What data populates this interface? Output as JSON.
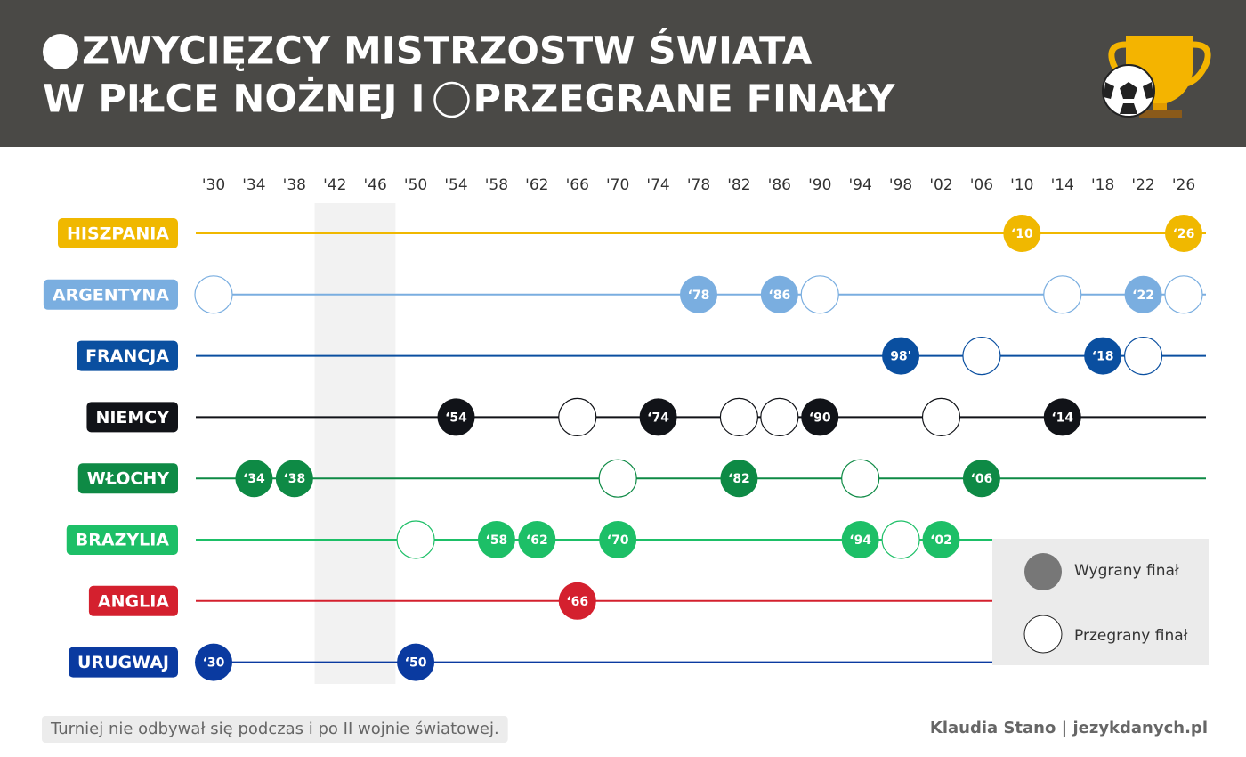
{
  "chart_data": {
    "type": "timeline",
    "title_part1": "ZWYCIĘZCY MISTRZOSTW ŚWIATA",
    "title_part2": "W PIŁCE NOŻNEJ I",
    "title_part3": "PRZEGRANE FINAŁY",
    "xlim": [
      1930,
      2026
    ],
    "xticks": [
      {
        "value": 1930,
        "label": "'30"
      },
      {
        "value": 1934,
        "label": "'34"
      },
      {
        "value": 1938,
        "label": "'38"
      },
      {
        "value": 1942,
        "label": "'42"
      },
      {
        "value": 1946,
        "label": "'46"
      },
      {
        "value": 1950,
        "label": "'50"
      },
      {
        "value": 1954,
        "label": "'54"
      },
      {
        "value": 1958,
        "label": "'58"
      },
      {
        "value": 1962,
        "label": "'62"
      },
      {
        "value": 1966,
        "label": "'66"
      },
      {
        "value": 1970,
        "label": "'70"
      },
      {
        "value": 1974,
        "label": "'74"
      },
      {
        "value": 1978,
        "label": "'78"
      },
      {
        "value": 1982,
        "label": "'82"
      },
      {
        "value": 1986,
        "label": "'86"
      },
      {
        "value": 1990,
        "label": "'90"
      },
      {
        "value": 1994,
        "label": "'94"
      },
      {
        "value": 1998,
        "label": "'98"
      },
      {
        "value": 2002,
        "label": "'02"
      },
      {
        "value": 2006,
        "label": "'06"
      },
      {
        "value": 2010,
        "label": "'10"
      },
      {
        "value": 2014,
        "label": "'14"
      },
      {
        "value": 2018,
        "label": "'18"
      },
      {
        "value": 2022,
        "label": "'22"
      },
      {
        "value": 2026,
        "label": "'26"
      }
    ],
    "no_tournament": [
      1942,
      1946
    ],
    "rows": [
      {
        "name": "HISZPANIA",
        "color": "#f0b800",
        "wins": [
          {
            "year": 2010,
            "label": "‘10"
          },
          {
            "year": 2026,
            "label": "‘26"
          }
        ],
        "losses": []
      },
      {
        "name": "ARGENTYNA",
        "color": "#7aaee0",
        "wins": [
          {
            "year": 1978,
            "label": "‘78"
          },
          {
            "year": 1986,
            "label": "‘86"
          },
          {
            "year": 2022,
            "label": "‘22"
          }
        ],
        "losses": [
          1930,
          1990,
          2014,
          2026
        ]
      },
      {
        "name": "FRANCJA",
        "color": "#0a4fa0",
        "wins": [
          {
            "year": 1998,
            "label": "98'"
          },
          {
            "year": 2018,
            "label": "‘18"
          }
        ],
        "losses": [
          2006,
          2022
        ]
      },
      {
        "name": "NIEMCY",
        "color": "#111318",
        "wins": [
          {
            "year": 1954,
            "label": "‘54"
          },
          {
            "year": 1974,
            "label": "‘74"
          },
          {
            "year": 1990,
            "label": "‘90"
          },
          {
            "year": 2014,
            "label": "‘14"
          }
        ],
        "losses": [
          1966,
          1982,
          1986,
          2002
        ]
      },
      {
        "name": "WŁOCHY",
        "color": "#0e8a45",
        "wins": [
          {
            "year": 1934,
            "label": "‘34"
          },
          {
            "year": 1938,
            "label": "‘38"
          },
          {
            "year": 1982,
            "label": "‘82"
          },
          {
            "year": 2006,
            "label": "‘06"
          }
        ],
        "losses": [
          1970,
          1994
        ]
      },
      {
        "name": "BRAZYLIA",
        "color": "#1dbf67",
        "wins": [
          {
            "year": 1958,
            "label": "‘58"
          },
          {
            "year": 1962,
            "label": "‘62"
          },
          {
            "year": 1970,
            "label": "‘70"
          },
          {
            "year": 1994,
            "label": "‘94"
          },
          {
            "year": 2002,
            "label": "‘02"
          }
        ],
        "losses": [
          1950,
          1998
        ]
      },
      {
        "name": "ANGLIA",
        "color": "#d4202e",
        "wins": [
          {
            "year": 1966,
            "label": "‘66"
          }
        ],
        "losses": []
      },
      {
        "name": "URUGWAJ",
        "color": "#0a3aa0",
        "wins": [
          {
            "year": 1930,
            "label": "‘30"
          },
          {
            "year": 1950,
            "label": "‘50"
          }
        ],
        "losses": []
      }
    ],
    "legend_win": "Wygrany finał",
    "legend_loss": "Przegrany finał",
    "note": "Turniej nie odbywał się podczas i po II wojnie światowej.",
    "author": "Klaudia Stano | jezykdanych.pl"
  }
}
